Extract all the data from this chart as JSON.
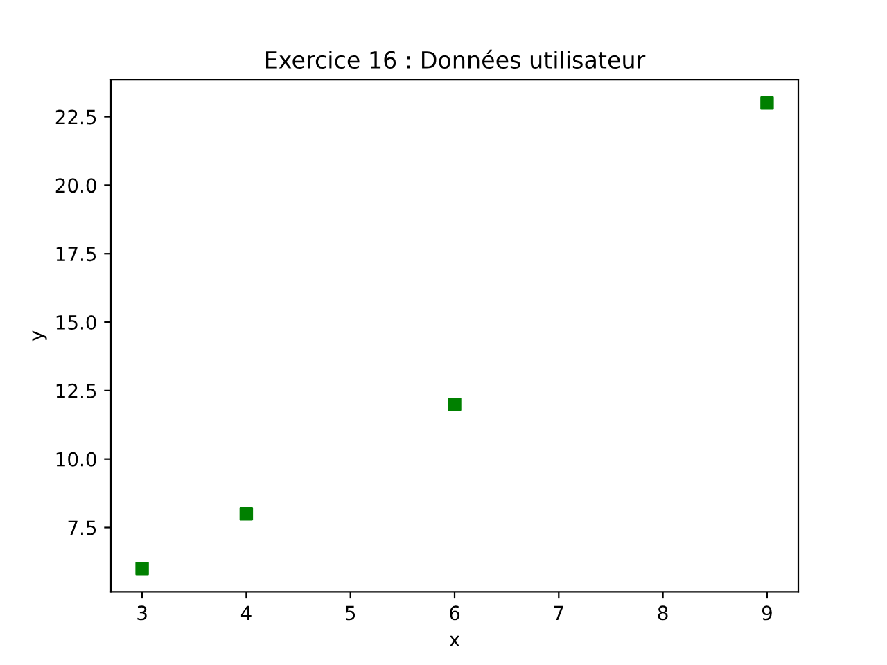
{
  "chart_data": {
    "type": "scatter",
    "title": "Exercice 16 : Données utilisateur",
    "xlabel": "x",
    "ylabel": "y",
    "x": [
      3,
      4,
      6,
      9
    ],
    "series": [
      {
        "color": "#008000",
        "values": [
          6,
          8,
          12,
          23
        ]
      }
    ],
    "marker": "square",
    "xlim": [
      2.7,
      9.3
    ],
    "ylim": [
      5.15,
      23.85
    ],
    "xticks": [
      3,
      4,
      5,
      6,
      7,
      8,
      9
    ],
    "yticks": [
      7.5,
      {
        "value": 10,
        "label": "10.0"
      },
      12.5,
      {
        "value": 15,
        "label": "15.0"
      },
      17.5,
      {
        "value": 20,
        "label": "20.0"
      },
      22.5
    ],
    "grid": false,
    "legend": false
  }
}
